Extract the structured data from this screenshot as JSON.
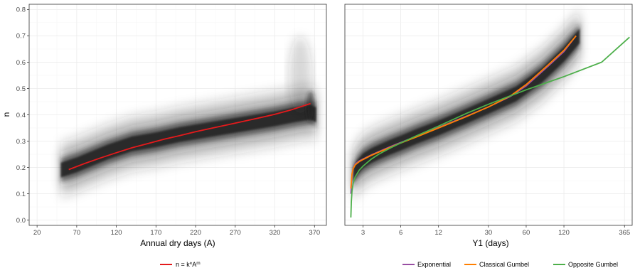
{
  "chart_data": [
    {
      "type": "scatter",
      "xlabel": "Annual dry days (A)",
      "ylabel": "n",
      "xlim": [
        10,
        385
      ],
      "ylim": [
        -0.02,
        0.82
      ],
      "x_ticks": [
        20,
        70,
        120,
        170,
        220,
        270,
        320,
        370
      ],
      "y_ticks": [
        0.0,
        0.1,
        0.2,
        0.3,
        0.4,
        0.5,
        0.6,
        0.7,
        0.8
      ],
      "y_tick_labels": [
        "0.0",
        "0.1",
        "0.2",
        "0.3",
        "0.4",
        "0.5",
        "0.6",
        "0.7",
        "0.8"
      ],
      "grid": true,
      "legend": "bottom",
      "series": [
        {
          "name": "n = k*A^m",
          "color": "#e41a1c",
          "x": [
            60,
            80,
            100,
            120,
            140,
            160,
            180,
            200,
            220,
            240,
            260,
            280,
            300,
            320,
            340,
            365
          ],
          "y": [
            0.192,
            0.215,
            0.236,
            0.256,
            0.275,
            0.291,
            0.307,
            0.321,
            0.336,
            0.349,
            0.362,
            0.375,
            0.388,
            0.402,
            0.418,
            0.443
          ]
        }
      ],
      "scatter_band": {
        "x": [
          50,
          70,
          90,
          110,
          140,
          170,
          200,
          230,
          260,
          290,
          320,
          345,
          365,
          372
        ],
        "y": [
          0.19,
          0.21,
          0.235,
          0.26,
          0.29,
          0.305,
          0.325,
          0.34,
          0.355,
          0.37,
          0.385,
          0.4,
          0.41,
          0.4
        ]
      }
    },
    {
      "type": "line",
      "xlabel": "Y1 (days)",
      "x_scale": "log",
      "xlim": [
        2.15,
        420
      ],
      "ylim": [
        -0.02,
        0.82
      ],
      "x_ticks": [
        3,
        6,
        12,
        30,
        60,
        120,
        365
      ],
      "grid": true,
      "legend": "bottom",
      "series": [
        {
          "name": "Exponential",
          "color": "#984ea3",
          "x": [
            2.4,
            2.45,
            2.5,
            2.6,
            2.8,
            3,
            3.5,
            4,
            5,
            6,
            8,
            12,
            20,
            30,
            45,
            60,
            90,
            120,
            150
          ],
          "y": [
            0.1,
            0.17,
            0.195,
            0.213,
            0.225,
            0.232,
            0.248,
            0.26,
            0.28,
            0.295,
            0.318,
            0.352,
            0.395,
            0.43,
            0.47,
            0.51,
            0.585,
            0.64,
            0.7
          ]
        },
        {
          "name": "Classical Gumbel",
          "color": "#ff7f00",
          "x": [
            2.4,
            2.45,
            2.5,
            2.6,
            2.8,
            3,
            3.5,
            4,
            5,
            6,
            8,
            12,
            20,
            30,
            45,
            60,
            90,
            120,
            150
          ],
          "y": [
            0.12,
            0.175,
            0.195,
            0.21,
            0.222,
            0.23,
            0.246,
            0.258,
            0.277,
            0.293,
            0.316,
            0.35,
            0.393,
            0.43,
            0.472,
            0.515,
            0.59,
            0.645,
            0.7
          ]
        },
        {
          "name": "Opposite Gumbel",
          "color": "#4daf4a",
          "x": [
            2.4,
            2.42,
            2.45,
            2.5,
            2.6,
            2.8,
            3,
            3.5,
            4,
            5,
            6,
            8,
            12,
            20,
            30,
            60,
            120,
            240,
            400
          ],
          "y": [
            0.01,
            0.07,
            0.11,
            0.14,
            0.165,
            0.19,
            0.205,
            0.232,
            0.25,
            0.275,
            0.293,
            0.32,
            0.357,
            0.405,
            0.44,
            0.495,
            0.545,
            0.6,
            0.695
          ]
        }
      ],
      "scatter_band": {
        "x": [
          2.5,
          2.7,
          3,
          3.5,
          4,
          5,
          6,
          8,
          12,
          20,
          30,
          50,
          80,
          120,
          160
        ],
        "y": [
          0.17,
          0.2,
          0.225,
          0.245,
          0.258,
          0.278,
          0.293,
          0.318,
          0.35,
          0.395,
          0.432,
          0.48,
          0.55,
          0.63,
          0.7
        ]
      }
    }
  ]
}
